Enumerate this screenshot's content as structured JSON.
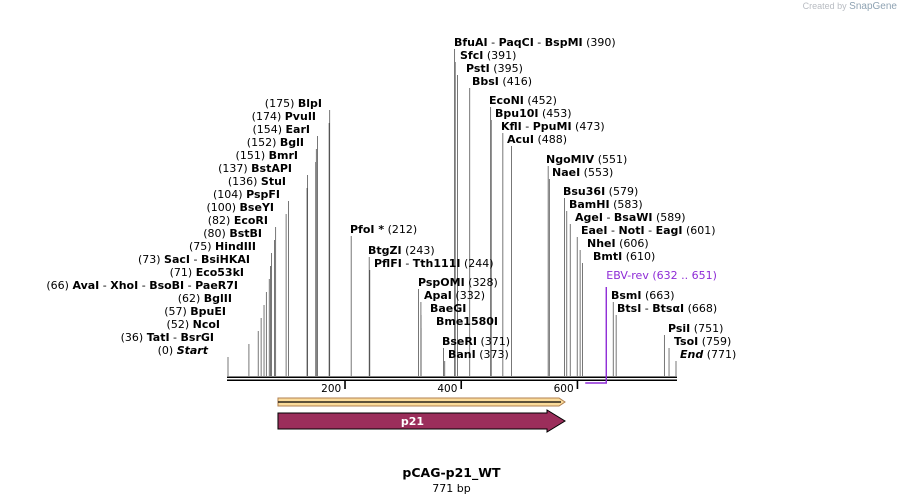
{
  "credit": {
    "prefix": "Created by",
    "brand": "SnapGene"
  },
  "plasmid": {
    "name": "pCAG-p21_WT",
    "length_label": "771 bp",
    "length_bp": 771
  },
  "colors": {
    "ink": "#000000",
    "feature_p21": "#9b2e5b",
    "orf_fill": "#fbdc9b",
    "orf_stroke": "#b08050",
    "primer": "#8e2bd6"
  },
  "axis": {
    "ticks": [
      200,
      400,
      600
    ]
  },
  "features": [
    {
      "name": "p21",
      "start": 86,
      "end": 580,
      "direction": "forward"
    }
  ],
  "orf": {
    "start": 86,
    "end": 580,
    "direction": "forward"
  },
  "primer": {
    "name": "EBV-rev",
    "range": "(632 .. 651)",
    "start": 632,
    "end": 651,
    "direction": "reverse"
  },
  "sites": [
    {
      "pos": 0,
      "label": "(0)",
      "names": [
        "Start"
      ],
      "italic": true,
      "side": "left"
    },
    {
      "pos": 36,
      "label": "(36)",
      "names": [
        "TatI",
        "BsrGI"
      ],
      "side": "left"
    },
    {
      "pos": 52,
      "label": "(52)",
      "names": [
        "NcoI"
      ],
      "side": "left"
    },
    {
      "pos": 57,
      "label": "(57)",
      "names": [
        "BpuEI"
      ],
      "side": "left"
    },
    {
      "pos": 62,
      "label": "(62)",
      "names": [
        "BglII"
      ],
      "side": "left"
    },
    {
      "pos": 66,
      "label": "(66)",
      "names": [
        "AvaI",
        "XhoI",
        "BsoBI",
        "PaeR7I"
      ],
      "side": "left"
    },
    {
      "pos": 71,
      "label": "(71)",
      "names": [
        "Eco53kI"
      ],
      "side": "left"
    },
    {
      "pos": 73,
      "label": "(73)",
      "names": [
        "SacI",
        "BsiHKAI"
      ],
      "side": "left"
    },
    {
      "pos": 75,
      "label": "(75)",
      "names": [
        "HindIII"
      ],
      "side": "left"
    },
    {
      "pos": 80,
      "label": "(80)",
      "names": [
        "BstBI"
      ],
      "side": "left"
    },
    {
      "pos": 82,
      "label": "(82)",
      "names": [
        "EcoRI"
      ],
      "side": "left"
    },
    {
      "pos": 100,
      "label": "(100)",
      "names": [
        "BseYI"
      ],
      "side": "left"
    },
    {
      "pos": 104,
      "label": "(104)",
      "names": [
        "PspFI"
      ],
      "side": "left"
    },
    {
      "pos": 136,
      "label": "(136)",
      "names": [
        "StuI"
      ],
      "side": "left"
    },
    {
      "pos": 137,
      "label": "(137)",
      "names": [
        "BstAPI"
      ],
      "side": "left"
    },
    {
      "pos": 151,
      "label": "(151)",
      "names": [
        "BmrI"
      ],
      "side": "left"
    },
    {
      "pos": 152,
      "label": "(152)",
      "names": [
        "BglI"
      ],
      "side": "left"
    },
    {
      "pos": 154,
      "label": "(154)",
      "names": [
        "EarI"
      ],
      "side": "left"
    },
    {
      "pos": 174,
      "label": "(174)",
      "names": [
        "PvuII"
      ],
      "side": "left"
    },
    {
      "pos": 175,
      "label": "(175)",
      "names": [
        "BlpI"
      ],
      "side": "left"
    },
    {
      "pos": 212,
      "label": "(212)",
      "names": [
        "PfoI *"
      ],
      "side": "right"
    },
    {
      "pos": 243,
      "label": "(243)",
      "names": [
        "BtgZI"
      ],
      "side": "right"
    },
    {
      "pos": 244,
      "label": "(244)",
      "names": [
        "PflFI",
        "Tth111I"
      ],
      "side": "right"
    },
    {
      "pos": 328,
      "label": "(328)",
      "names": [
        "PspOMI"
      ],
      "side": "right"
    },
    {
      "pos": 332,
      "label": "(332)",
      "names": [
        "ApaI"
      ],
      "side": "right"
    },
    {
      "pos": 332,
      "label": "",
      "names": [
        "BaeGI"
      ],
      "side": "right"
    },
    {
      "pos": 332,
      "label": "",
      "names": [
        "Bme1580I"
      ],
      "side": "right"
    },
    {
      "pos": 371,
      "label": "(371)",
      "names": [
        "BseRI"
      ],
      "side": "right"
    },
    {
      "pos": 373,
      "label": "(373)",
      "names": [
        "BanI"
      ],
      "side": "right"
    },
    {
      "pos": 390,
      "label": "(390)",
      "names": [
        "BfuAI",
        "PaqCI",
        "BspMI"
      ],
      "side": "right"
    },
    {
      "pos": 391,
      "label": "(391)",
      "names": [
        "SfcI"
      ],
      "side": "right"
    },
    {
      "pos": 395,
      "label": "(395)",
      "names": [
        "PstI"
      ],
      "side": "right"
    },
    {
      "pos": 416,
      "label": "(416)",
      "names": [
        "BbsI"
      ],
      "side": "right"
    },
    {
      "pos": 452,
      "label": "(452)",
      "names": [
        "EcoNI"
      ],
      "side": "right"
    },
    {
      "pos": 453,
      "label": "(453)",
      "names": [
        "Bpu10I"
      ],
      "side": "right"
    },
    {
      "pos": 473,
      "label": "(473)",
      "names": [
        "KflI",
        "PpuMI"
      ],
      "side": "right"
    },
    {
      "pos": 488,
      "label": "(488)",
      "names": [
        "AcuI"
      ],
      "side": "right"
    },
    {
      "pos": 551,
      "label": "(551)",
      "names": [
        "NgoMIV"
      ],
      "side": "right"
    },
    {
      "pos": 553,
      "label": "(553)",
      "names": [
        "NaeI"
      ],
      "side": "right"
    },
    {
      "pos": 579,
      "label": "(579)",
      "names": [
        "Bsu36I"
      ],
      "side": "right"
    },
    {
      "pos": 583,
      "label": "(583)",
      "names": [
        "BamHI"
      ],
      "side": "right"
    },
    {
      "pos": 589,
      "label": "(589)",
      "names": [
        "AgeI",
        "BsaWI"
      ],
      "side": "right"
    },
    {
      "pos": 601,
      "label": "(601)",
      "names": [
        "EaeI",
        "NotI",
        "EagI"
      ],
      "side": "right"
    },
    {
      "pos": 606,
      "label": "(606)",
      "names": [
        "NheI"
      ],
      "side": "right"
    },
    {
      "pos": 610,
      "label": "(610)",
      "names": [
        "BmtI"
      ],
      "side": "right"
    },
    {
      "pos": 663,
      "label": "(663)",
      "names": [
        "BsmI"
      ],
      "side": "right"
    },
    {
      "pos": 668,
      "label": "(668)",
      "names": [
        "BtsI",
        "BtsαI"
      ],
      "side": "right"
    },
    {
      "pos": 751,
      "label": "(751)",
      "names": [
        "PsiI"
      ],
      "side": "right"
    },
    {
      "pos": 759,
      "label": "(759)",
      "names": [
        "TsoI"
      ],
      "side": "right"
    },
    {
      "pos": 771,
      "label": "(771)",
      "names": [
        "End"
      ],
      "italic": true,
      "side": "right"
    }
  ]
}
